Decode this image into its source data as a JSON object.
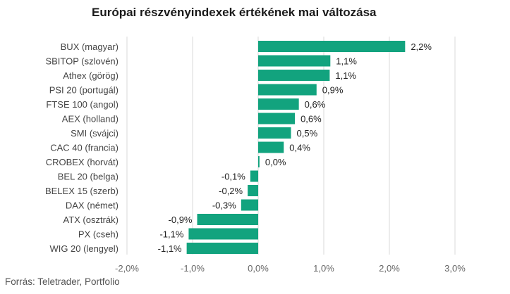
{
  "chart_data": {
    "type": "bar",
    "orientation": "horizontal",
    "title": "Európai részvényindexek értékének mai változása",
    "source": "Forrás: Teletrader, Portfolio",
    "bar_color": "#12a37e",
    "grid": true,
    "xlim": [
      -2.0,
      3.0
    ],
    "ticks": [
      -2.0,
      -1.0,
      0.0,
      1.0,
      2.0,
      3.0
    ],
    "tick_labels": [
      "-2,0%",
      "-1,0%",
      "0,0%",
      "1,0%",
      "2,0%",
      "3,0%"
    ],
    "categories": [
      "BUX (magyar)",
      "SBITOP (szlovén)",
      "Athex (görög)",
      "PSI 20 (portugál)",
      "FTSE 100 (angol)",
      "AEX (holland)",
      "SMI (svájci)",
      "CAC 40 (francia)",
      "CROBEX (horvát)",
      "BEL 20 (belga)",
      "BELEX 15 (szerb)",
      "DAX (német)",
      "ATX (osztrák)",
      "PX (cseh)",
      "WIG 20 (lengyel)"
    ],
    "values": [
      2.24,
      1.1,
      1.09,
      0.89,
      0.62,
      0.56,
      0.5,
      0.39,
      0.02,
      -0.12,
      -0.16,
      -0.26,
      -0.93,
      -1.06,
      -1.09
    ],
    "value_labels": [
      "2,2%",
      "1,1%",
      "1,1%",
      "0,9%",
      "0,6%",
      "0,6%",
      "0,5%",
      "0,4%",
      "0,0%",
      "-0,1%",
      "-0,2%",
      "-0,3%",
      "-0,9%",
      "-1,1%",
      "-1,1%"
    ]
  }
}
